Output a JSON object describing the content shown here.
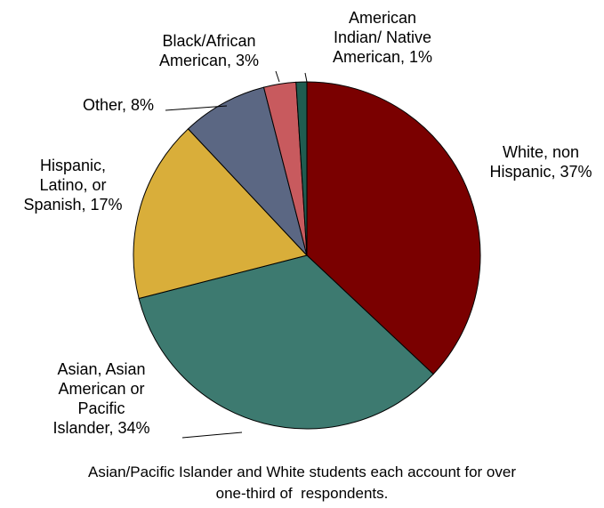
{
  "chart_data": {
    "type": "pie",
    "title": "",
    "categories": [
      "White, non Hispanic",
      "Asian, Asian American or Pacific Islander",
      "Hispanic, Latino, or Spanish",
      "Other",
      "Black/African American",
      "American Indian/ Native American"
    ],
    "values": [
      37,
      34,
      17,
      8,
      3,
      1
    ],
    "colors": [
      "#7a0000",
      "#3d7a70",
      "#d9ae3a",
      "#5b6783",
      "#c85a5e",
      "#1f5c50"
    ],
    "data_labels": [
      [
        "White, non",
        "Hispanic, 37%"
      ],
      [
        "Asian, Asian",
        "American or",
        "Pacific",
        "Islander, 34%"
      ],
      [
        "Hispanic,",
        "Latino, or",
        "Spanish, 17%"
      ],
      [
        "Other, 8%"
      ],
      [
        "Black/African",
        "American, 3%"
      ],
      [
        "American",
        "Indian/ Native",
        "American, 1%"
      ]
    ],
    "legend": "none"
  },
  "caption": {
    "lines": [
      "Asian/Pacific Islander and White students each account for over",
      "one-third of  respondents."
    ]
  }
}
